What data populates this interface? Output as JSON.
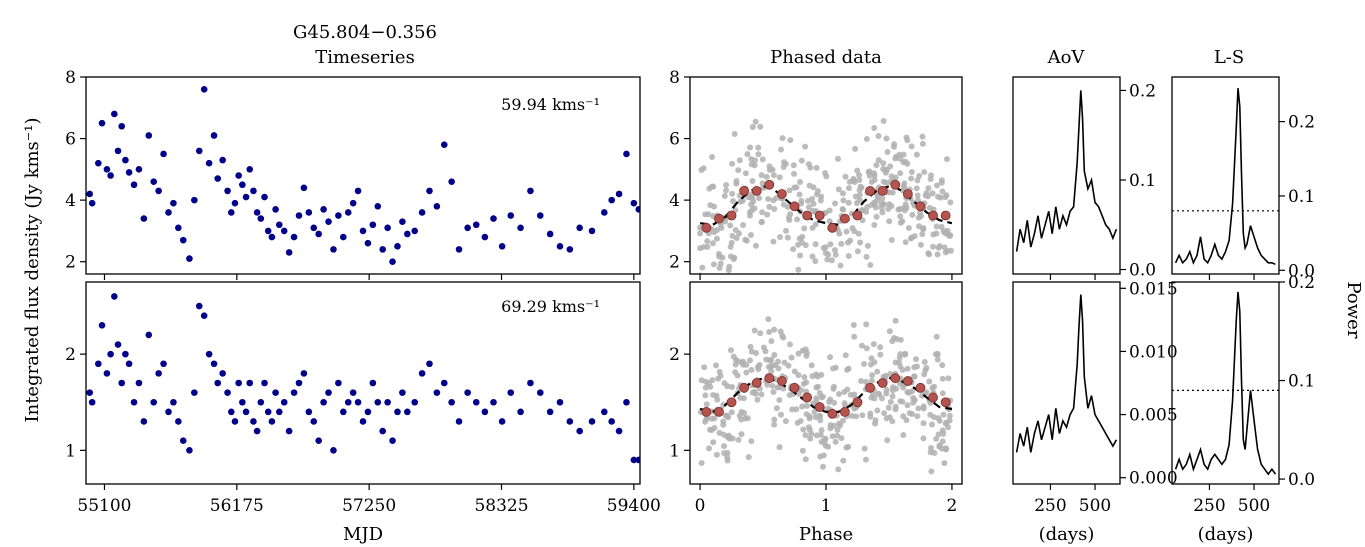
{
  "figure": {
    "source_name": "G45.804−0.356",
    "ylabel": "Integrated flux density (Jy kms⁻¹)",
    "right_label": "Power"
  },
  "colors": {
    "timeseries_points": "#00008b",
    "phased_points": "#b0b0b0",
    "phased_bins": "#b5534f",
    "model_curve": "#000000",
    "periodogram_line": "#000000"
  },
  "chart_data": [
    {
      "panel": "timeseries-top",
      "type": "scatter",
      "title": "Timeseries",
      "annotation": "59.94 kms⁻¹",
      "xlabel": "",
      "ylabel": "",
      "xlim": [
        54950,
        59450
      ],
      "ylim": [
        1.6,
        8.0
      ],
      "xticks": [
        55100,
        56175,
        57250,
        58325,
        59400
      ],
      "yticks": [
        2,
        4,
        6,
        8
      ],
      "series": [
        {
          "x": [
            54980,
            55000,
            55050,
            55080,
            55120,
            55150,
            55180,
            55210,
            55240,
            55270,
            55300,
            55340,
            55380,
            55420,
            55460,
            55500,
            55540,
            55580,
            55620,
            55660,
            55700,
            55740,
            55790,
            55830,
            55870,
            55910,
            55950,
            55990,
            56020,
            56060,
            56100,
            56130,
            56160,
            56190,
            56220,
            56250,
            56280,
            56310,
            56340,
            56370,
            56400,
            56430,
            56460,
            56490,
            56520,
            56560,
            56600,
            56640,
            56680,
            56720,
            56760,
            56800,
            56840,
            56880,
            56920,
            56960,
            57000,
            57040,
            57080,
            57120,
            57160,
            57200,
            57240,
            57280,
            57320,
            57360,
            57400,
            57440,
            57480,
            57520,
            57560,
            57620,
            57680,
            57740,
            57800,
            57860,
            57920,
            57980,
            58050,
            58120,
            58190,
            58260,
            58330,
            58400,
            58480,
            58560,
            58640,
            58720,
            58800,
            58880,
            58960,
            59060,
            59160,
            59220,
            59280,
            59340,
            59400,
            59440
          ],
          "y": [
            4.2,
            3.9,
            5.2,
            6.5,
            5.0,
            4.8,
            6.8,
            5.6,
            6.4,
            5.3,
            4.9,
            4.5,
            5.0,
            3.4,
            6.1,
            4.6,
            4.3,
            5.5,
            3.6,
            3.9,
            3.1,
            2.7,
            2.1,
            4.0,
            5.6,
            7.6,
            5.2,
            6.1,
            4.7,
            5.3,
            4.3,
            3.6,
            3.9,
            4.8,
            4.5,
            4.1,
            5.0,
            4.3,
            3.6,
            3.4,
            4.1,
            3.0,
            2.8,
            3.7,
            3.2,
            3.0,
            2.3,
            2.8,
            3.5,
            4.4,
            3.6,
            3.1,
            2.9,
            3.7,
            3.3,
            2.4,
            3.5,
            2.8,
            3.6,
            3.9,
            4.3,
            3.0,
            2.6,
            3.2,
            3.8,
            2.4,
            3.1,
            2.0,
            2.5,
            3.3,
            2.9,
            3.0,
            3.6,
            4.3,
            3.8,
            5.8,
            4.6,
            2.4,
            3.1,
            3.2,
            2.8,
            3.4,
            2.5,
            3.5,
            3.1,
            4.3,
            3.5,
            2.9,
            2.5,
            2.4,
            3.1,
            3.0,
            3.6,
            4.0,
            4.2,
            5.5,
            3.9,
            3.7
          ]
        }
      ]
    },
    {
      "panel": "timeseries-bottom",
      "type": "scatter",
      "annotation": "69.29 kms⁻¹",
      "xlabel": "MJD",
      "xlim": [
        54950,
        59450
      ],
      "ylim": [
        0.65,
        2.75
      ],
      "xticks": [
        55100,
        56175,
        57250,
        58325,
        59400
      ],
      "yticks": [
        1,
        2
      ],
      "series": [
        {
          "x": [
            54980,
            55000,
            55050,
            55080,
            55120,
            55150,
            55180,
            55210,
            55240,
            55270,
            55300,
            55340,
            55380,
            55420,
            55460,
            55500,
            55540,
            55580,
            55620,
            55660,
            55700,
            55740,
            55790,
            55830,
            55870,
            55910,
            55950,
            55990,
            56020,
            56060,
            56100,
            56130,
            56160,
            56190,
            56220,
            56250,
            56280,
            56310,
            56340,
            56370,
            56400,
            56430,
            56460,
            56490,
            56520,
            56560,
            56600,
            56640,
            56680,
            56720,
            56760,
            56800,
            56840,
            56880,
            56920,
            56960,
            57000,
            57040,
            57080,
            57120,
            57160,
            57200,
            57240,
            57280,
            57320,
            57360,
            57400,
            57440,
            57480,
            57520,
            57560,
            57620,
            57680,
            57740,
            57800,
            57860,
            57920,
            57980,
            58050,
            58120,
            58190,
            58260,
            58330,
            58400,
            58480,
            58560,
            58640,
            58720,
            58800,
            58880,
            58960,
            59060,
            59160,
            59220,
            59280,
            59340,
            59400,
            59440
          ],
          "y": [
            1.6,
            1.5,
            1.9,
            2.3,
            1.8,
            2.0,
            2.6,
            2.1,
            1.7,
            2.0,
            1.9,
            1.5,
            1.7,
            1.3,
            2.2,
            1.5,
            1.8,
            1.9,
            1.4,
            1.5,
            1.3,
            1.1,
            1.0,
            1.6,
            2.5,
            2.4,
            2.0,
            1.9,
            1.7,
            1.8,
            1.6,
            1.4,
            1.3,
            1.7,
            1.5,
            1.4,
            1.7,
            1.3,
            1.2,
            1.5,
            1.7,
            1.4,
            1.3,
            1.6,
            1.4,
            1.5,
            1.2,
            1.6,
            1.7,
            1.8,
            1.4,
            1.3,
            1.1,
            1.5,
            1.6,
            1.0,
            1.7,
            1.4,
            1.5,
            1.6,
            1.5,
            1.3,
            1.4,
            1.7,
            1.5,
            1.2,
            1.5,
            1.1,
            1.4,
            1.6,
            1.4,
            1.5,
            1.8,
            1.9,
            1.6,
            1.7,
            1.5,
            1.3,
            1.6,
            1.5,
            1.4,
            1.5,
            1.3,
            1.6,
            1.4,
            1.7,
            1.6,
            1.4,
            1.5,
            1.3,
            1.2,
            1.3,
            1.4,
            1.3,
            1.2,
            1.5,
            0.9,
            0.9
          ]
        }
      ]
    },
    {
      "panel": "phased-top",
      "type": "scatter",
      "title": "Phased data",
      "xlabel": "",
      "xlim": [
        -0.08,
        2.08
      ],
      "ylim": [
        1.6,
        8.0
      ],
      "xticks": [
        0,
        1,
        2
      ],
      "yticks": [
        2,
        4,
        6,
        8
      ],
      "bins_x": [
        0.05,
        0.15,
        0.25,
        0.35,
        0.45,
        0.55,
        0.65,
        0.75,
        0.85,
        0.95,
        1.05,
        1.15,
        1.25,
        1.35,
        1.45,
        1.55,
        1.65,
        1.75,
        1.85,
        1.95
      ],
      "bins_y": [
        3.1,
        3.4,
        3.5,
        4.3,
        4.3,
        4.5,
        4.2,
        3.8,
        3.5,
        3.5,
        3.1,
        3.4,
        3.5,
        4.3,
        4.3,
        4.5,
        4.2,
        3.8,
        3.5,
        3.5
      ],
      "model_x": [
        0.0,
        0.1,
        0.2,
        0.3,
        0.4,
        0.5,
        0.55,
        0.6,
        0.7,
        0.8,
        0.9,
        1.0,
        1.1,
        1.2,
        1.3,
        1.4,
        1.5,
        1.55,
        1.6,
        1.7,
        1.8,
        1.9,
        2.0
      ],
      "model_y": [
        3.25,
        3.2,
        3.45,
        3.95,
        4.3,
        4.45,
        4.42,
        4.3,
        3.95,
        3.6,
        3.35,
        3.25,
        3.2,
        3.45,
        3.95,
        4.3,
        4.45,
        4.42,
        4.3,
        3.95,
        3.6,
        3.35,
        3.25
      ]
    },
    {
      "panel": "phased-bottom",
      "type": "scatter",
      "xlabel": "Phase",
      "xlim": [
        -0.08,
        2.08
      ],
      "ylim": [
        0.65,
        2.75
      ],
      "xticks": [
        0,
        1,
        2
      ],
      "yticks": [
        1,
        2
      ],
      "bins_x": [
        0.05,
        0.15,
        0.25,
        0.35,
        0.45,
        0.55,
        0.65,
        0.75,
        0.85,
        0.95,
        1.05,
        1.15,
        1.25,
        1.35,
        1.45,
        1.55,
        1.65,
        1.75,
        1.85,
        1.95
      ],
      "bins_y": [
        1.4,
        1.4,
        1.5,
        1.65,
        1.7,
        1.75,
        1.72,
        1.65,
        1.55,
        1.45,
        1.38,
        1.4,
        1.5,
        1.65,
        1.7,
        1.75,
        1.72,
        1.65,
        1.55,
        1.5
      ],
      "model_x": [
        0.0,
        0.1,
        0.2,
        0.3,
        0.4,
        0.5,
        0.55,
        0.6,
        0.7,
        0.8,
        0.9,
        1.0,
        1.1,
        1.2,
        1.3,
        1.4,
        1.5,
        1.55,
        1.6,
        1.7,
        1.8,
        1.9,
        2.0
      ],
      "model_y": [
        1.43,
        1.4,
        1.47,
        1.6,
        1.7,
        1.75,
        1.75,
        1.72,
        1.65,
        1.55,
        1.45,
        1.4,
        1.4,
        1.47,
        1.6,
        1.7,
        1.75,
        1.75,
        1.72,
        1.65,
        1.55,
        1.45,
        1.43
      ]
    },
    {
      "panel": "aov-top",
      "type": "line",
      "title": "AoV",
      "xlabel": "",
      "xlim": [
        40,
        640
      ],
      "ylim": [
        -0.005,
        0.215
      ],
      "xticks": [
        250,
        500
      ],
      "yticks": [
        0.0,
        0.1,
        0.2
      ],
      "ytick_labels": [
        "0.0",
        "0.1",
        "0.2"
      ],
      "x": [
        60,
        80,
        100,
        120,
        140,
        160,
        180,
        200,
        220,
        240,
        260,
        280,
        300,
        320,
        340,
        360,
        380,
        400,
        410,
        420,
        430,
        440,
        460,
        480,
        500,
        520,
        540,
        560,
        580,
        600,
        620
      ],
      "y": [
        0.02,
        0.045,
        0.03,
        0.055,
        0.025,
        0.04,
        0.06,
        0.035,
        0.05,
        0.065,
        0.04,
        0.07,
        0.045,
        0.06,
        0.05,
        0.065,
        0.07,
        0.12,
        0.16,
        0.2,
        0.17,
        0.11,
        0.09,
        0.1,
        0.075,
        0.07,
        0.06,
        0.05,
        0.045,
        0.035,
        0.045
      ]
    },
    {
      "panel": "aov-bottom",
      "type": "line",
      "xlabel": "(days)",
      "xlim": [
        40,
        640
      ],
      "ylim": [
        -0.0005,
        0.0155
      ],
      "xticks": [
        250,
        500
      ],
      "yticks": [
        0.0,
        0.005,
        0.01,
        0.015
      ],
      "ytick_labels": [
        "0.000",
        "0.005",
        "0.010",
        "0.015"
      ],
      "x": [
        60,
        80,
        100,
        120,
        140,
        160,
        180,
        200,
        220,
        240,
        260,
        280,
        300,
        320,
        340,
        360,
        380,
        400,
        410,
        420,
        430,
        440,
        460,
        480,
        500,
        520,
        540,
        560,
        580,
        600,
        620
      ],
      "y": [
        0.002,
        0.0035,
        0.0025,
        0.004,
        0.002,
        0.0035,
        0.0045,
        0.003,
        0.004,
        0.005,
        0.003,
        0.0055,
        0.0035,
        0.0045,
        0.004,
        0.005,
        0.0055,
        0.009,
        0.012,
        0.0145,
        0.0125,
        0.008,
        0.0055,
        0.0065,
        0.005,
        0.0045,
        0.004,
        0.0035,
        0.003,
        0.0025,
        0.003
      ]
    },
    {
      "panel": "ls-top",
      "type": "line",
      "title": "L-S",
      "xlabel": "",
      "xlim": [
        40,
        640
      ],
      "ylim": [
        -0.005,
        0.26
      ],
      "xticks": [
        250,
        500
      ],
      "yticks": [
        0.0,
        0.1,
        0.2
      ],
      "ytick_labels": [
        "0.0",
        "0.1",
        "0.2"
      ],
      "threshold": 0.08,
      "x": [
        60,
        80,
        100,
        120,
        140,
        160,
        180,
        200,
        220,
        240,
        260,
        280,
        300,
        320,
        340,
        360,
        380,
        400,
        410,
        420,
        430,
        440,
        450,
        460,
        480,
        500,
        520,
        540,
        560,
        580,
        600,
        620
      ],
      "y": [
        0.01,
        0.02,
        0.01,
        0.015,
        0.025,
        0.01,
        0.02,
        0.045,
        0.015,
        0.01,
        0.02,
        0.035,
        0.02,
        0.015,
        0.025,
        0.04,
        0.09,
        0.19,
        0.245,
        0.22,
        0.13,
        0.05,
        0.03,
        0.035,
        0.06,
        0.045,
        0.03,
        0.02,
        0.015,
        0.01,
        0.01,
        0.008
      ]
    },
    {
      "panel": "ls-bottom",
      "type": "line",
      "xlabel": "(days)",
      "xlim": [
        40,
        640
      ],
      "ylim": [
        -0.005,
        0.2
      ],
      "xticks": [
        250,
        500
      ],
      "yticks": [
        0.0,
        0.1,
        0.2
      ],
      "ytick_labels": [
        "0.0",
        "0.1",
        "0.2"
      ],
      "threshold": 0.09,
      "x": [
        60,
        80,
        100,
        120,
        140,
        160,
        180,
        200,
        220,
        240,
        260,
        280,
        300,
        320,
        340,
        360,
        380,
        400,
        410,
        420,
        430,
        440,
        450,
        460,
        480,
        500,
        520,
        540,
        560,
        580,
        600,
        620
      ],
      "y": [
        0.01,
        0.02,
        0.01,
        0.015,
        0.025,
        0.01,
        0.02,
        0.03,
        0.015,
        0.01,
        0.02,
        0.025,
        0.02,
        0.015,
        0.02,
        0.035,
        0.08,
        0.16,
        0.19,
        0.17,
        0.1,
        0.04,
        0.03,
        0.05,
        0.09,
        0.06,
        0.03,
        0.015,
        0.01,
        0.005,
        0.01,
        0.005
      ]
    }
  ]
}
